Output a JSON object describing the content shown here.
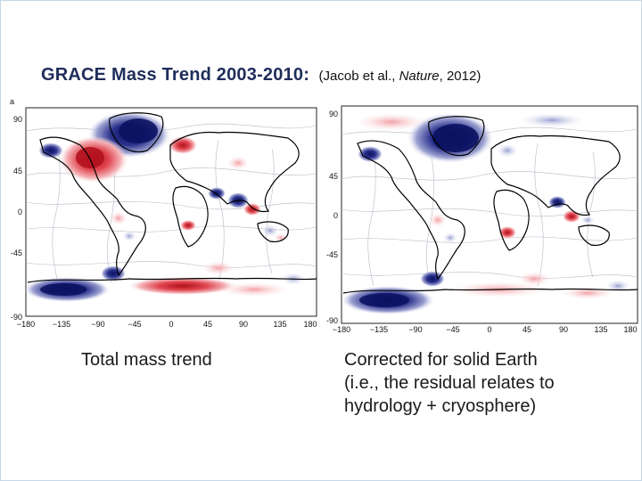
{
  "slide": {
    "title_main": "GRACE Mass Trend 2003-2010:",
    "citation_prefix": "(Jacob et al., ",
    "citation_journal": "Nature",
    "citation_suffix": ", 2012)"
  },
  "panels": [
    {
      "panel_letter": "a",
      "caption": "Total mass trend",
      "lat_ticks": [
        "90",
        "45",
        "0",
        "-45",
        "-90"
      ],
      "lon_ticks": [
        "−180",
        "−135",
        "−90",
        "−45",
        "0",
        "45",
        "90",
        "135",
        "180"
      ]
    },
    {
      "panel_letter": "",
      "caption_lines": [
        "Corrected for solid Earth",
        "(i.e., the residual relates to",
        "hydrology + cryosphere)"
      ],
      "lat_ticks": [
        "90",
        "45",
        "0",
        "-45",
        "-90"
      ],
      "lon_ticks": [
        "−180",
        "−135",
        "−90",
        "−45",
        "0",
        "45",
        "90",
        "135",
        "180"
      ]
    }
  ],
  "colors": {
    "gain": "#a80f1a",
    "loss": "#0d1466",
    "coast": "#000000",
    "title": "#1f2d5a"
  }
}
